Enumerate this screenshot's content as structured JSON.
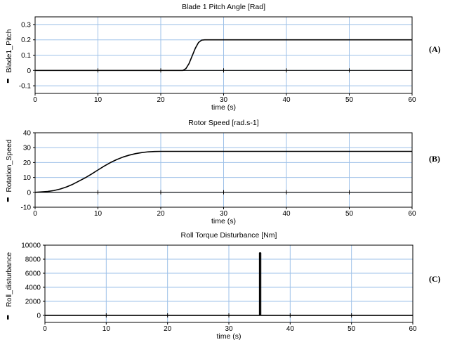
{
  "chart_data": [
    {
      "type": "line",
      "title": "Blade 1 Pitch Angle [Rad]",
      "xlabel": "time (s)",
      "ylabel": "Blade1_Pitch",
      "panel_label": "(A)",
      "xlim": [
        0,
        60
      ],
      "ylim": [
        -0.15,
        0.35
      ],
      "xticks": [
        0,
        10,
        20,
        30,
        40,
        50,
        60
      ],
      "yticks": [
        -0.1,
        0,
        0.1,
        0.2,
        0.3
      ],
      "xtick_labels": [
        "0",
        "10",
        "20",
        "30",
        "40",
        "50",
        "60"
      ],
      "ytick_labels": [
        "-0.1",
        "0",
        "0.1",
        "0.2",
        "0.3"
      ],
      "grid": true,
      "series": [
        {
          "x": [
            0,
            23.5,
            24.0,
            24.5,
            25.0,
            25.5,
            26.0,
            26.5,
            27.0,
            60
          ],
          "y": [
            0,
            0,
            0.012,
            0.045,
            0.095,
            0.145,
            0.182,
            0.198,
            0.2,
            0.2
          ],
          "color": "#000000"
        }
      ]
    },
    {
      "type": "line",
      "title": "Rotor Speed [rad.s-1]",
      "xlabel": "time (s)",
      "ylabel": "Rotation_Speed",
      "panel_label": "(B)",
      "xlim": [
        0,
        60
      ],
      "ylim": [
        -10,
        40
      ],
      "xticks": [
        0,
        10,
        20,
        30,
        40,
        50,
        60
      ],
      "yticks": [
        -10,
        0,
        10,
        20,
        30,
        40
      ],
      "xtick_labels": [
        "0",
        "10",
        "20",
        "30",
        "40",
        "50",
        "60"
      ],
      "ytick_labels": [
        "-10",
        "0",
        "10",
        "20",
        "30",
        "40"
      ],
      "grid": true,
      "series": [
        {
          "x": [
            0,
            1,
            2,
            3,
            4,
            5,
            6,
            7,
            8,
            9,
            10,
            11,
            12,
            13,
            14,
            15,
            16,
            17,
            18,
            19,
            20,
            60
          ],
          "y": [
            0,
            0.3,
            0.6,
            1.2,
            2.2,
            3.6,
            5.4,
            7.6,
            9.8,
            12.3,
            15.0,
            17.6,
            20.0,
            22.0,
            23.7,
            25.0,
            26.0,
            26.7,
            27.2,
            27.4,
            27.5,
            27.5
          ],
          "color": "#000000"
        }
      ]
    },
    {
      "type": "line",
      "title": "Roll Torque Disturbance [Nm]",
      "xlabel": "time (s)",
      "ylabel": "Roll_disturbance",
      "panel_label": "(C)",
      "xlim": [
        0,
        60
      ],
      "ylim": [
        -1000,
        10000
      ],
      "xticks": [
        0,
        10,
        20,
        30,
        40,
        50,
        60
      ],
      "yticks": [
        0,
        2000,
        4000,
        6000,
        8000,
        10000
      ],
      "xtick_labels": [
        "0",
        "10",
        "20",
        "30",
        "40",
        "50",
        "60"
      ],
      "ytick_labels": [
        "0",
        "2000",
        "4000",
        "6000",
        "8000",
        "10000"
      ],
      "grid": true,
      "series": [
        {
          "x": [
            0,
            35.0,
            35.0,
            35.2,
            35.2,
            60
          ],
          "y": [
            0,
            0,
            8900,
            8900,
            0,
            0
          ],
          "color": "#000000"
        }
      ]
    }
  ],
  "colors": {
    "grid": "#9ec1e8",
    "axis": "#000000",
    "trace": "#000000"
  }
}
